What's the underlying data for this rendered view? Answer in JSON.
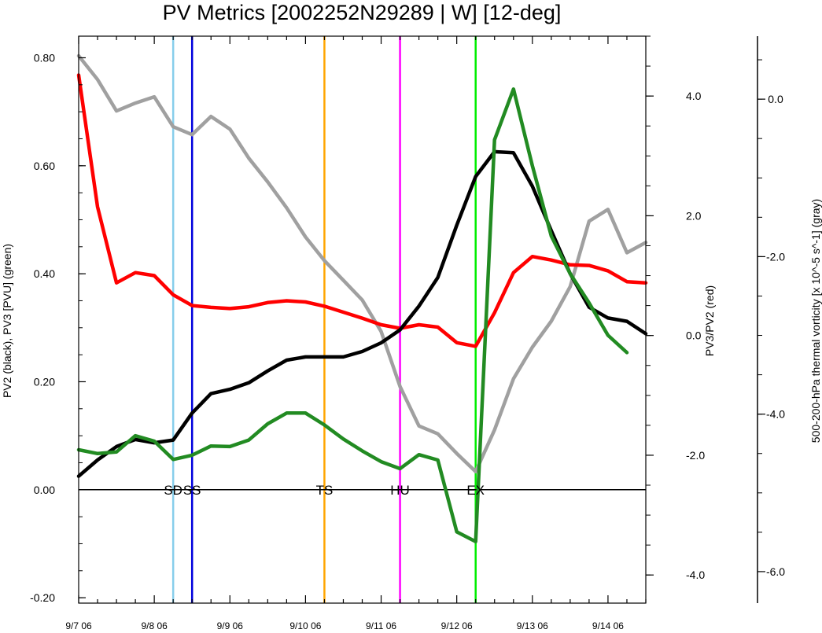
{
  "chart_data": {
    "type": "line",
    "title": "PV Metrics [2002252N29289 | W] [12-deg]",
    "x_tick_labels": [
      "9/7 06",
      "9/8 06",
      "9/9 06",
      "9/10 06",
      "9/11 06",
      "9/12 06",
      "9/13 06",
      "9/14 06"
    ],
    "x_hours": [
      0,
      6,
      12,
      18,
      24,
      30,
      36,
      42,
      48,
      54,
      60,
      66,
      72,
      78,
      84,
      90,
      96,
      102,
      108,
      114,
      120,
      126,
      132,
      138,
      144,
      150,
      156,
      162,
      168,
      174,
      180
    ],
    "x_range_hours": [
      0,
      180
    ],
    "left_axis": {
      "label": "PV2 (black), PV3 [PVU] (green)",
      "range": [
        -0.21,
        0.84
      ],
      "ticks": [
        -0.2,
        0.0,
        0.2,
        0.4,
        0.6,
        0.8
      ],
      "tick_labels": [
        "-0.20",
        "0.00",
        "0.20",
        "0.40",
        "0.60",
        "0.80"
      ]
    },
    "right_axis": {
      "label": "PV3/PV2 (red)",
      "range": [
        -4.47,
        5.0
      ],
      "ticks": [
        -4.0,
        -2.0,
        0.0,
        2.0,
        4.0
      ],
      "tick_labels": [
        "-4.0",
        "-2.0",
        "0.0",
        "2.0",
        "4.0"
      ]
    },
    "far_right_axis": {
      "label": "500-200-hPa thermal vorticity [x 10^-5 s^-1] (gray)",
      "range": [
        -6.4,
        0.8
      ],
      "ticks": [
        -6.0,
        -4.0,
        -2.0,
        0.0
      ],
      "tick_labels": [
        "-6.0",
        "-4.0",
        "-2.0",
        "0.0"
      ]
    },
    "series": [
      {
        "axis": "left",
        "color": "#000000",
        "values": [
          0.025,
          0.055,
          0.08,
          0.093,
          0.087,
          0.092,
          0.142,
          0.178,
          0.186,
          0.198,
          0.22,
          0.24,
          0.246,
          0.246,
          0.246,
          0.256,
          0.272,
          0.296,
          0.34,
          0.393,
          0.49,
          0.58,
          0.626,
          0.624,
          0.562,
          0.48,
          0.4,
          0.338,
          0.318,
          0.312,
          0.289
        ]
      },
      {
        "axis": "left",
        "color": "#228b22",
        "values": [
          0.074,
          0.067,
          0.07,
          0.1,
          0.09,
          0.056,
          0.064,
          0.081,
          0.08,
          0.092,
          0.122,
          0.142,
          0.142,
          0.12,
          0.094,
          0.072,
          0.052,
          0.039,
          0.065,
          0.055,
          -0.078,
          -0.096,
          0.648,
          0.742,
          0.6,
          0.47,
          0.4,
          0.346,
          0.286,
          0.254,
          null
        ]
      },
      {
        "axis": "right",
        "color": "#ff0000",
        "values": [
          4.35,
          2.15,
          0.88,
          1.05,
          1.0,
          0.68,
          0.5,
          0.47,
          0.45,
          0.48,
          0.55,
          0.58,
          0.56,
          0.49,
          0.39,
          0.29,
          0.18,
          0.12,
          0.18,
          0.14,
          -0.12,
          -0.18,
          0.38,
          1.05,
          1.32,
          1.26,
          1.18,
          1.17,
          1.08,
          0.9,
          0.88
        ]
      },
      {
        "axis": "far_right",
        "color": "#a0a0a0",
        "values": [
          0.55,
          0.25,
          -0.15,
          -0.05,
          0.03,
          -0.35,
          -0.45,
          -0.22,
          -0.38,
          -0.75,
          -1.05,
          -1.38,
          -1.75,
          -2.05,
          -2.3,
          -2.55,
          -2.95,
          -3.65,
          -4.15,
          -4.25,
          -4.5,
          -4.73,
          -4.2,
          -3.55,
          -3.15,
          -2.82,
          -2.38,
          -1.55,
          -1.4,
          -1.95,
          -1.82
        ]
      }
    ],
    "stage_lines": [
      {
        "label": "SD",
        "hours": 30,
        "color": "#87ceeb"
      },
      {
        "label": "SS",
        "hours": 36,
        "color": "#0000dd"
      },
      {
        "label": "TS",
        "hours": 78,
        "color": "#ffa500"
      },
      {
        "label": "HU",
        "hours": 102,
        "color": "#ff00ff"
      },
      {
        "label": "EX",
        "hours": 126,
        "color": "#00ee00"
      }
    ],
    "zero_line": true,
    "grid": false,
    "legend": "none"
  }
}
